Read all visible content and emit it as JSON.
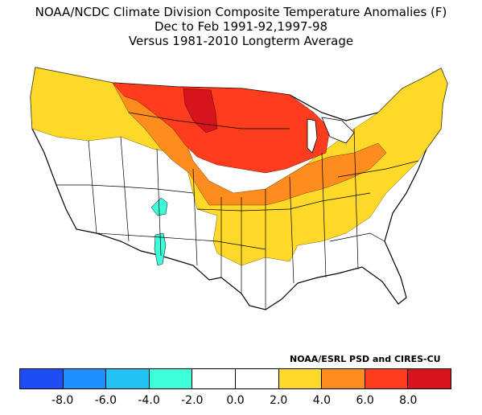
{
  "title": {
    "line1": "NOAA/NCDC Climate Division Composite Temperature Anomalies (F)",
    "line2": "Dec to Feb  1991-92,1997-98",
    "line3": "Versus 1981-2010 Longterm Average"
  },
  "credit": "NOAA/ESRL PSD and CIRES-CU",
  "legend": {
    "colors": [
      "#1e4cf5",
      "#1e90ff",
      "#25c3f5",
      "#3dffd9",
      "#ffffff",
      "#ffffff",
      "#ffd92a",
      "#ff8c1e",
      "#ff3c1e",
      "#d7141e"
    ],
    "tick_labels": [
      "-8.0",
      "-6.0",
      "-4.0",
      "-2.0",
      "0.0",
      "2.0",
      "4.0",
      "6.0",
      "8.0"
    ]
  },
  "map": {
    "boundary_color": "#000000"
  }
}
